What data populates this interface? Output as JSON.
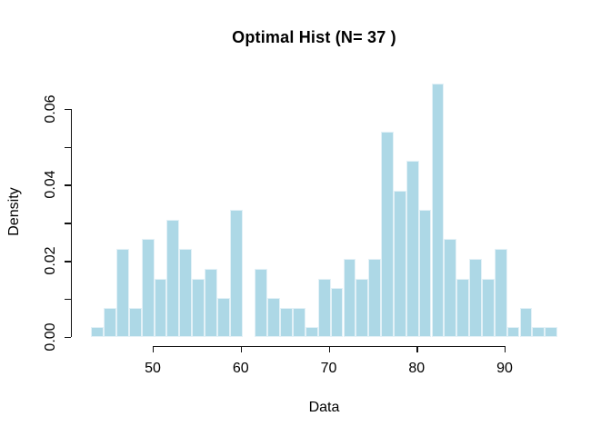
{
  "chart_data": {
    "type": "bar",
    "subtype": "histogram",
    "title": "Optimal Hist (N= 37 )",
    "xlabel": "Data",
    "ylabel": "Density",
    "n_bins": 37,
    "bin_start": 43,
    "bin_end": 96,
    "bin_width": 1.43243,
    "densities": [
      0.0026,
      0.0077,
      0.0231,
      0.0077,
      0.0257,
      0.0154,
      0.0308,
      0.0231,
      0.0154,
      0.018,
      0.0103,
      0.0334,
      0,
      0.018,
      0.0103,
      0.0077,
      0.0077,
      0.0026,
      0.0154,
      0.0128,
      0.0205,
      0.0154,
      0.0205,
      0.0539,
      0.0385,
      0.0462,
      0.0334,
      0.0667,
      0.0257,
      0.0154,
      0.0205,
      0.0154,
      0.0231,
      0.0026,
      0.0077,
      0.0026,
      0.0026
    ],
    "counts": [
      1,
      3,
      9,
      3,
      10,
      6,
      12,
      9,
      6,
      7,
      4,
      13,
      0,
      7,
      4,
      3,
      3,
      1,
      6,
      5,
      8,
      6,
      8,
      21,
      15,
      18,
      13,
      26,
      10,
      6,
      8,
      6,
      9,
      1,
      3,
      1,
      1
    ],
    "x_ticks": [
      50,
      60,
      70,
      80,
      90
    ],
    "x_tick_labels": [
      "50",
      "60",
      "70",
      "80",
      "90"
    ],
    "y_ticks": [
      0,
      0.01,
      0.02,
      0.03,
      0.04,
      0.05,
      0.06
    ],
    "y_labeled_ticks": [
      0,
      0.02,
      0.04,
      0.06
    ],
    "y_tick_labels": [
      "0.00",
      "0.02",
      "0.04",
      "0.06"
    ],
    "xlim": [
      43,
      96
    ],
    "ylim": [
      0,
      0.0667
    ],
    "grid": false,
    "legend": false,
    "bar_fill": "#ADD8E6",
    "bar_border": "#E3F1F7",
    "axis_color": "#111111",
    "text_color": "#000000"
  }
}
